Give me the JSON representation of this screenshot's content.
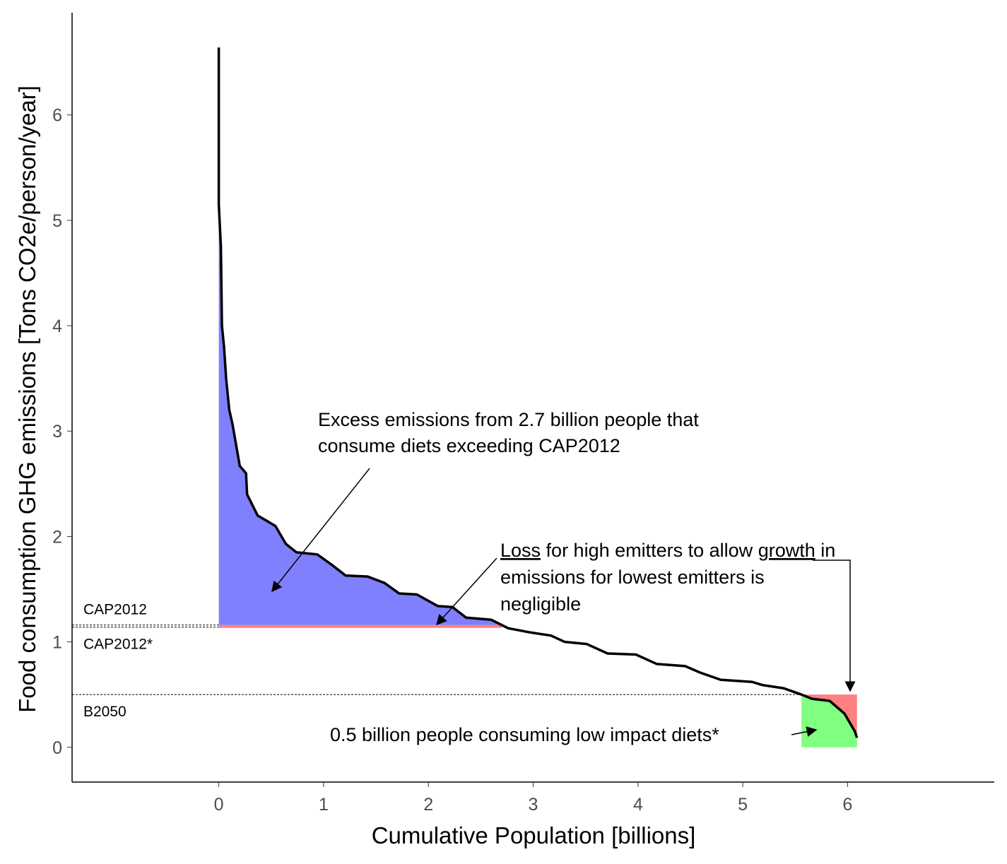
{
  "chart_data": {
    "type": "area",
    "xlabel": "Cumulative Population [billions]",
    "ylabel": "Food consumption GHG emissions [Tons CO2e/person/year]",
    "xlim": [
      -1.4,
      7.4
    ],
    "ylim": [
      -0.33,
      6.97
    ],
    "xticks": [
      0,
      1,
      2,
      3,
      4,
      5,
      6
    ],
    "yticks": [
      0,
      1,
      2,
      3,
      4,
      5,
      6
    ],
    "grid": false,
    "colors": {
      "excess": "#8080ff",
      "loss": "#ff8080",
      "growth": "#80ff80",
      "line": "#000000"
    },
    "reference_lines": [
      {
        "label": "CAP2012",
        "y": 1.16
      },
      {
        "label": "CAP2012*",
        "y": 1.14
      },
      {
        "label": "B2050",
        "y": 0.5
      }
    ],
    "curve": {
      "x": [
        0,
        0,
        0.02,
        0.03,
        0.05,
        0.07,
        0.1,
        0.13,
        0.2,
        0.26,
        0.27,
        0.37,
        0.54,
        0.64,
        0.74,
        0.94,
        1.08,
        1.21,
        1.42,
        1.58,
        1.72,
        1.89,
        2.09,
        2.23,
        2.36,
        2.6,
        2.76,
        2.97,
        3.17,
        3.3,
        3.51,
        3.71,
        3.98,
        4.18,
        4.45,
        4.59,
        4.79,
        5.09,
        5.19,
        5.39,
        5.56,
        5.66,
        5.83,
        5.97,
        6.07,
        6.09
      ],
      "y": [
        6.64,
        5.15,
        4.75,
        4.0,
        3.8,
        3.5,
        3.2,
        3.07,
        2.67,
        2.6,
        2.4,
        2.2,
        2.1,
        1.93,
        1.85,
        1.83,
        1.73,
        1.63,
        1.62,
        1.56,
        1.46,
        1.45,
        1.34,
        1.33,
        1.23,
        1.21,
        1.13,
        1.09,
        1.06,
        1.0,
        0.98,
        0.89,
        0.88,
        0.79,
        0.77,
        0.71,
        0.64,
        0.62,
        0.59,
        0.56,
        0.5,
        0.46,
        0.44,
        0.32,
        0.15,
        0.09
      ]
    },
    "regions": {
      "excess_x": [
        0,
        2.7
      ],
      "low_x": [
        5.56,
        6.09
      ]
    },
    "annotations": {
      "excess": [
        "Excess emissions from 2.7 billion people that",
        "consume diets exceeding CAP2012"
      ],
      "loss_word": "Loss",
      "loss_rest1": " for high emitters to allow ",
      "growth_word": "growth",
      "loss_rest2": " in",
      "loss_line2": "emissions for lowest emitters is",
      "loss_line3": "negligible",
      "low": "0.5 billion people consuming low impact diets*"
    }
  }
}
